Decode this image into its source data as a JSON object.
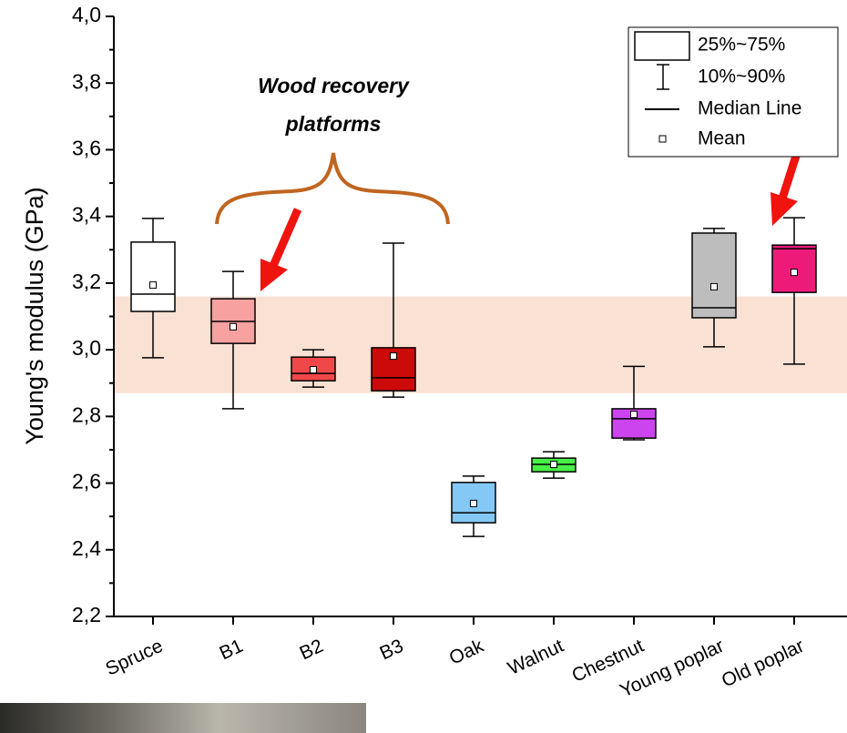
{
  "chart_data": {
    "type": "box",
    "y_label": "Young's modulus (GPa)",
    "annotation": [
      "Wood recovery",
      "platforms"
    ],
    "categories": [
      "Spruce",
      "B1",
      "B2",
      "B3",
      "Oak",
      "Walnut",
      "Chestnut",
      "Young poplar",
      "Old poplar"
    ],
    "boxes": [
      {
        "color": "#ffffff",
        "low": 2.976,
        "q1": 3.115,
        "median": 3.167,
        "q3": 3.323,
        "high": 3.394,
        "mean": 3.194
      },
      {
        "color": "#f7a1a1",
        "low": 2.823,
        "q1": 3.019,
        "median": 3.085,
        "q3": 3.153,
        "high": 3.235,
        "mean": 3.069
      },
      {
        "color": "#f04848",
        "low": 2.888,
        "q1": 2.907,
        "median": 2.929,
        "q3": 2.978,
        "high": 3.0,
        "mean": 2.94
      },
      {
        "color": "#cc0a0a",
        "low": 2.858,
        "q1": 2.877,
        "median": 2.916,
        "q3": 3.006,
        "high": 3.32,
        "mean": 2.981
      },
      {
        "color": "#84c9f5",
        "low": 2.44,
        "q1": 2.481,
        "median": 2.511,
        "q3": 2.602,
        "high": 2.621,
        "mean": 2.539
      },
      {
        "color": "#48f048",
        "low": 2.615,
        "q1": 2.634,
        "median": 2.656,
        "q3": 2.675,
        "high": 2.694,
        "mean": 2.656
      },
      {
        "color": "#cc44ee",
        "low": 2.73,
        "q1": 2.735,
        "median": 2.793,
        "q3": 2.823,
        "high": 2.95,
        "mean": 2.806
      },
      {
        "color": "#bdbdbd",
        "low": 3.009,
        "q1": 3.096,
        "median": 3.126,
        "q3": 3.35,
        "high": 3.364,
        "mean": 3.189
      },
      {
        "color": "#ee1a7a",
        "low": 2.957,
        "q1": 3.172,
        "median": 3.303,
        "q3": 3.314,
        "high": 3.396,
        "mean": 3.232
      }
    ],
    "band": [
      2.87,
      3.16
    ],
    "band_color": "#f9e1d3",
    "ylim": [
      2.2,
      4.0
    ],
    "yticks": [
      {
        "value": 2.2,
        "label": "2,2"
      },
      {
        "value": 2.4,
        "label": "2,4"
      },
      {
        "value": 2.6,
        "label": "2,6"
      },
      {
        "value": 2.8,
        "label": "2,8"
      },
      {
        "value": 3.0,
        "label": "3,0"
      },
      {
        "value": 3.2,
        "label": "3,2"
      },
      {
        "value": 3.4,
        "label": "3,4"
      },
      {
        "value": 3.6,
        "label": "3,6"
      },
      {
        "value": 3.8,
        "label": "3,8"
      },
      {
        "value": 4.0,
        "label": "4,0"
      }
    ],
    "legend": [
      "25%~75%",
      "10%~90%",
      "Median Line",
      "Mean"
    ]
  }
}
